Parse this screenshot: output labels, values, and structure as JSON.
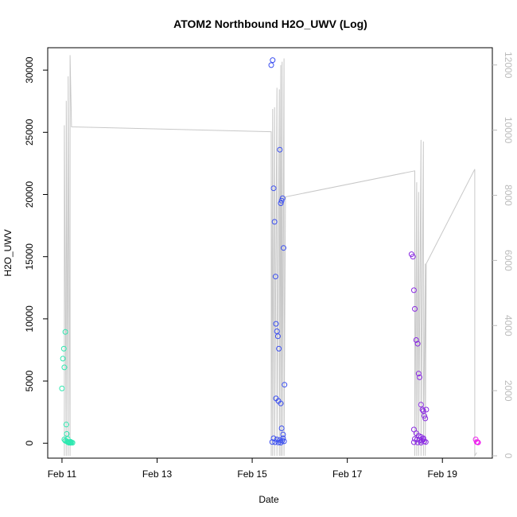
{
  "chart_data": {
    "type": "scatter",
    "title": "ATOM2 Northbound H2O_UWV (Log)",
    "xlabel": "Date",
    "ylabel": "H2O_UWV",
    "x_axis": {
      "type": "date",
      "ticks": [
        "Feb 11",
        "Feb 13",
        "Feb 15",
        "Feb 17",
        "Feb 19"
      ],
      "tick_values": [
        11,
        13,
        15,
        17,
        19
      ],
      "range": [
        10.7,
        20.05
      ]
    },
    "y_left": {
      "ticks": [
        "0",
        "5000",
        "10000",
        "15000",
        "20000",
        "25000",
        "30000"
      ],
      "tick_values": [
        0,
        5000,
        10000,
        15000,
        20000,
        25000,
        30000
      ],
      "range": [
        -1200,
        31800
      ]
    },
    "y_right": {
      "ticks": [
        "0",
        "2000",
        "4000",
        "6000",
        "8000",
        "10000",
        "12000"
      ],
      "tick_values": [
        0,
        2000,
        4000,
        6000,
        8000,
        10000,
        12000
      ],
      "range": [
        -72,
        12530
      ]
    },
    "grid": false,
    "legend": "none",
    "colors": {
      "points_early": "#2ee8b0",
      "points_mid": "#3a4ef0",
      "points_late": "#8a2be2",
      "points_end": "#ee22ee",
      "line": "#c8c8c8",
      "right_axis": "#bbbbbb"
    },
    "series": [
      {
        "role": "points",
        "axis": "left",
        "x": [
          11.0,
          11.02,
          11.04,
          11.05,
          11.07,
          11.09,
          11.1,
          11.12,
          11.13,
          11.14,
          11.16,
          11.18,
          11.2,
          11.22,
          11.05,
          11.07,
          11.1,
          11.12,
          11.15,
          11.18,
          15.4,
          15.43,
          15.45,
          15.47,
          15.49,
          15.5,
          15.52,
          15.54,
          15.56,
          15.58,
          15.6,
          15.62,
          15.64,
          15.66,
          15.68,
          15.5,
          15.55,
          15.6,
          15.62,
          15.65,
          15.45,
          15.52,
          15.58,
          15.63,
          15.67,
          15.42,
          15.48,
          15.55,
          15.6,
          15.65,
          18.35,
          18.38,
          18.4,
          18.42,
          18.45,
          18.48,
          18.5,
          18.52,
          18.55,
          18.58,
          18.6,
          18.62,
          18.64,
          18.66,
          18.4,
          18.45,
          18.5,
          18.55,
          18.6,
          18.42,
          18.47,
          18.52,
          18.57,
          18.62,
          18.65,
          18.4,
          18.48,
          18.55,
          18.6,
          19.7,
          19.72,
          19.74,
          19.75
        ],
        "y": [
          4400,
          6800,
          7600,
          6100,
          8950,
          1500,
          750,
          350,
          100,
          50,
          80,
          120,
          60,
          40,
          300,
          200,
          150,
          100,
          60,
          30,
          30400,
          30800,
          20500,
          17800,
          13400,
          9600,
          9000,
          8600,
          7600,
          23600,
          19300,
          19500,
          19700,
          15700,
          4700,
          3600,
          3400,
          3200,
          1200,
          700,
          400,
          300,
          250,
          200,
          150,
          100,
          80,
          60,
          50,
          400,
          15200,
          15000,
          12300,
          10800,
          8300,
          8000,
          5600,
          5300,
          3100,
          2700,
          2600,
          2200,
          2000,
          2700,
          1100,
          800,
          600,
          500,
          400,
          350,
          300,
          250,
          200,
          150,
          100,
          80,
          60,
          50,
          300,
          300,
          100,
          80,
          60
        ]
      },
      {
        "role": "line",
        "axis": "right",
        "x": [
          11.05,
          11.05,
          11.09,
          11.09,
          11.13,
          11.13,
          11.17,
          11.17,
          11.2,
          15.4,
          15.4,
          15.43,
          15.43,
          15.47,
          15.47,
          15.52,
          15.52,
          15.57,
          15.57,
          15.6,
          15.6,
          15.63,
          15.63,
          15.67,
          15.67,
          15.7,
          18.42,
          18.42,
          18.46,
          18.46,
          18.5,
          18.5,
          18.55,
          18.55,
          18.6,
          18.6,
          18.64,
          18.64,
          18.66,
          19.68,
          19.68,
          19.72
        ],
        "y": [
          0,
          10150,
          0,
          10900,
          0,
          11650,
          0,
          12300,
          10100,
          9950,
          0,
          10650,
          0,
          10700,
          0,
          11300,
          0,
          11250,
          0,
          12000,
          0,
          12100,
          0,
          12200,
          0,
          7950,
          8750,
          0,
          8400,
          0,
          8100,
          0,
          9700,
          0,
          9650,
          0,
          5900,
          0,
          5900,
          8800,
          0,
          100
        ]
      }
    ]
  }
}
